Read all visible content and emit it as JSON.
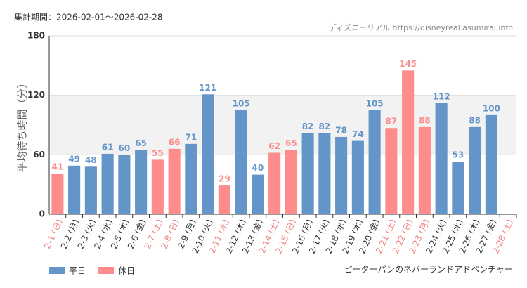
{
  "chart_data": {
    "type": "bar",
    "title": "集計期間：2026-02-01～2026-02-28",
    "source": "ディズニーリアル https://disneyreal.asumirai.info",
    "subtitle": "ピーターパンのネバーランドアドベンチャー",
    "y_label": "平均待ち時間（分）",
    "categories": [
      "2-1 (日)",
      "2-2 (月)",
      "2-3 (火)",
      "2-4 (水)",
      "2-5 (木)",
      "2-6 (金)",
      "2-7 (土)",
      "2-8 (日)",
      "2-9 (月)",
      "2-10 (火)",
      "2-11 (水)",
      "2-12 (木)",
      "2-13 (金)",
      "2-14 (土)",
      "2-15 (日)",
      "2-16 (月)",
      "2-17 (火)",
      "2-18 (水)",
      "2-19 (木)",
      "2-20 (金)",
      "2-21 (土)",
      "2-22 (日)",
      "2-23 (月)",
      "2-24 (火)",
      "2-25 (水)",
      "2-26 (木)",
      "2-27 (金)",
      "2-28 (土)"
    ],
    "category_colors": [
      "#f08080",
      "#333333",
      "#333333",
      "#333333",
      "#333333",
      "#333333",
      "#f08080",
      "#f08080",
      "#333333",
      "#333333",
      "#f08080",
      "#333333",
      "#333333",
      "#f08080",
      "#f08080",
      "#333333",
      "#333333",
      "#333333",
      "#333333",
      "#333333",
      "#f08080",
      "#f08080",
      "#f08080",
      "#333333",
      "#333333",
      "#333333",
      "#333333",
      "#f08080"
    ],
    "series": [
      {
        "name": "平日",
        "color": "#6495c8",
        "values": [
          null,
          49,
          48,
          61,
          60,
          65,
          null,
          null,
          71,
          121,
          null,
          105,
          40,
          null,
          null,
          82,
          82,
          78,
          74,
          105,
          null,
          null,
          null,
          112,
          53,
          88,
          100,
          null
        ]
      },
      {
        "name": "休日",
        "color": "#ff8c8c",
        "values": [
          41,
          null,
          null,
          null,
          null,
          null,
          55,
          66,
          null,
          null,
          29,
          null,
          null,
          62,
          65,
          null,
          null,
          null,
          null,
          null,
          87,
          145,
          88,
          null,
          null,
          null,
          null,
          null
        ]
      }
    ],
    "ylim": [
      0,
      180
    ],
    "yticks": [
      0,
      60,
      120,
      180
    ],
    "band": [
      60,
      120
    ],
    "grid": true
  }
}
